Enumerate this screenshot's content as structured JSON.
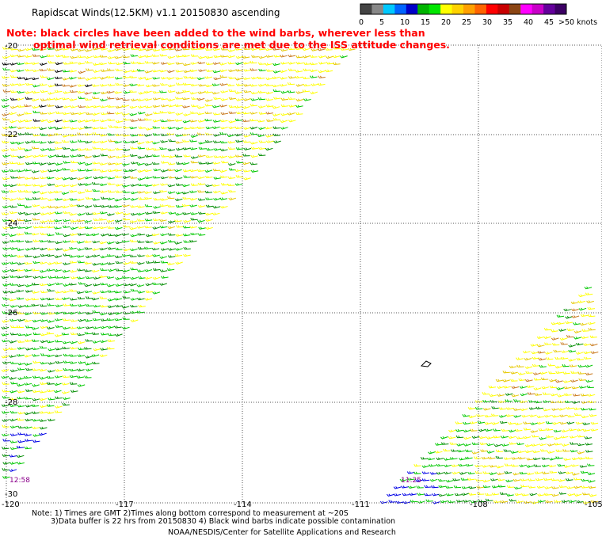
{
  "title": "Rapidscat Winds(12.5KM) v1.1 20150830 ascending",
  "note": {
    "line1": "Note: black circles have been added to the wind barbs, wherever less than",
    "line2": "optimal wind retrieval conditions are met due to the ISS attitude changes."
  },
  "legend": {
    "labels": [
      "0",
      "5",
      "10",
      "15",
      "20",
      "25",
      "30",
      "35",
      "40",
      "45",
      ">50 knots"
    ],
    "colors": [
      "#444444",
      "#888888",
      "#00c8ff",
      "#0064ff",
      "#0000c8",
      "#00b400",
      "#00e600",
      "#ffff00",
      "#ffd200",
      "#ffa000",
      "#ff6400",
      "#ff0000",
      "#c80000",
      "#8b4513",
      "#ff00ff",
      "#c800c8",
      "#64009b",
      "#3c0064"
    ]
  },
  "map": {
    "lat_labels": [
      "-20",
      "-22",
      "-24",
      "-26",
      "-28",
      "-30"
    ],
    "lon_labels": [
      "-120",
      "-117",
      "-114",
      "-111",
      "-108",
      "-105"
    ],
    "time_labels": [
      "12:58",
      "11:25"
    ],
    "barb_colors": {
      "yellow": "#ffff00",
      "dark_yellow": "#e6c800",
      "green": "#00c800",
      "dark_green": "#008c00",
      "blue": "#0000e6",
      "black": "#000000",
      "orange": "#c8781e"
    }
  },
  "footer": {
    "line1": "Note: 1) Times are GMT 2)Times along bottom correspond to measurement at ~20S",
    "line2": "3)Data buffer is 22 hrs from 20150830 4) Black wind barbs indicate possible contamination",
    "credit": "NOAA/NESDIS/Center for Satellite Applications and Research"
  }
}
